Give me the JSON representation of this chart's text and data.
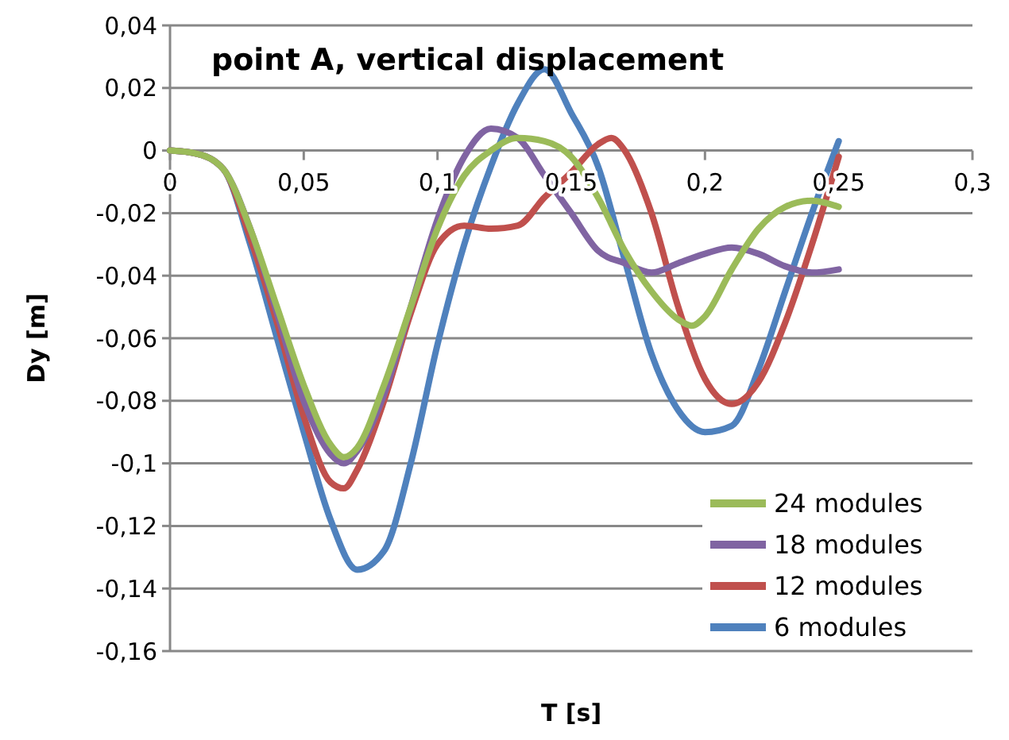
{
  "chart_data": {
    "type": "line",
    "title": "point A, vertical displacement",
    "xlabel": "T [s]",
    "ylabel": "Dy [m]",
    "xlim": [
      0,
      0.3
    ],
    "ylim": [
      -0.16,
      0.04
    ],
    "xticks": [
      0,
      {
        "value": 0.05,
        "label": "0,05"
      },
      {
        "value": 0.1,
        "label": "0,1"
      },
      {
        "value": 0.15,
        "label": "0,15"
      },
      {
        "value": 0.2,
        "label": "0,2"
      },
      {
        "value": 0.25,
        "label": "0,25"
      },
      {
        "value": 0.3,
        "label": "0,3"
      }
    ],
    "yticks": [
      {
        "value": 0.04,
        "label": "0,04"
      },
      {
        "value": 0.02,
        "label": "0,02"
      },
      0,
      {
        "value": -0.02,
        "label": "-0,02"
      },
      {
        "value": -0.04,
        "label": "-0,04"
      },
      {
        "value": -0.06,
        "label": "-0,06"
      },
      {
        "value": -0.08,
        "label": "-0,08"
      },
      {
        "value": -0.1,
        "label": "-0,1"
      },
      {
        "value": -0.12,
        "label": "-0,12"
      },
      {
        "value": -0.14,
        "label": "-0,14"
      },
      {
        "value": -0.16,
        "label": "-0,16"
      }
    ],
    "grid": "y",
    "legend": "bottom right",
    "marker": "none",
    "line_style": "solid",
    "series": [
      {
        "name": "24 modules",
        "color": "#9bbb59",
        "x": [
          0,
          0.01,
          0.02,
          0.03,
          0.04,
          0.05,
          0.06,
          0.065,
          0.07,
          0.08,
          0.09,
          0.1,
          0.11,
          0.12,
          0.13,
          0.14,
          0.15,
          0.16,
          0.17,
          0.18,
          0.19,
          0.195,
          0.2,
          0.21,
          0.22,
          0.23,
          0.24,
          0.25
        ],
        "values": [
          0,
          -0.001,
          -0.006,
          -0.025,
          -0.05,
          -0.075,
          -0.094,
          -0.098,
          -0.095,
          -0.075,
          -0.05,
          -0.025,
          -0.008,
          0,
          0.004,
          0.003,
          -0.002,
          -0.015,
          -0.032,
          -0.045,
          -0.054,
          -0.056,
          -0.053,
          -0.038,
          -0.025,
          -0.018,
          -0.016,
          -0.018
        ]
      },
      {
        "name": "18 modules",
        "color": "#8064a2",
        "x": [
          0,
          0.01,
          0.02,
          0.03,
          0.04,
          0.05,
          0.06,
          0.065,
          0.07,
          0.08,
          0.09,
          0.1,
          0.11,
          0.12,
          0.13,
          0.14,
          0.15,
          0.16,
          0.17,
          0.18,
          0.19,
          0.2,
          0.21,
          0.22,
          0.23,
          0.24,
          0.25
        ],
        "values": [
          0,
          -0.001,
          -0.006,
          -0.025,
          -0.052,
          -0.08,
          -0.097,
          -0.1,
          -0.096,
          -0.078,
          -0.05,
          -0.022,
          -0.002,
          0.007,
          0.004,
          -0.008,
          -0.02,
          -0.032,
          -0.036,
          -0.039,
          -0.036,
          -0.033,
          -0.031,
          -0.033,
          -0.037,
          -0.039,
          -0.038
        ]
      },
      {
        "name": "12 modules",
        "color": "#c0504d",
        "x": [
          0,
          0.01,
          0.02,
          0.03,
          0.04,
          0.05,
          0.06,
          0.065,
          0.07,
          0.08,
          0.09,
          0.1,
          0.11,
          0.12,
          0.13,
          0.14,
          0.15,
          0.16,
          0.165,
          0.17,
          0.18,
          0.19,
          0.2,
          0.21,
          0.22,
          0.23,
          0.24,
          0.25
        ],
        "values": [
          0,
          -0.001,
          -0.006,
          -0.028,
          -0.055,
          -0.085,
          -0.106,
          -0.108,
          -0.102,
          -0.08,
          -0.052,
          -0.03,
          -0.024,
          -0.025,
          -0.024,
          -0.015,
          -0.007,
          0.002,
          0.004,
          0,
          -0.02,
          -0.05,
          -0.073,
          -0.081,
          -0.074,
          -0.055,
          -0.03,
          -0.002
        ]
      },
      {
        "name": "6 modules",
        "color": "#4f81bd",
        "x": [
          0,
          0.01,
          0.02,
          0.03,
          0.04,
          0.05,
          0.06,
          0.07,
          0.08,
          0.09,
          0.1,
          0.11,
          0.12,
          0.13,
          0.14,
          0.15,
          0.16,
          0.17,
          0.18,
          0.19,
          0.2,
          0.21,
          0.22,
          0.23,
          0.24,
          0.25
        ],
        "values": [
          0,
          -0.001,
          -0.006,
          -0.03,
          -0.06,
          -0.09,
          -0.118,
          -0.134,
          -0.128,
          -0.1,
          -0.062,
          -0.03,
          -0.005,
          0.015,
          0.026,
          0.012,
          -0.005,
          -0.035,
          -0.065,
          -0.083,
          -0.09,
          -0.088,
          -0.07,
          -0.045,
          -0.02,
          0.003
        ]
      }
    ]
  }
}
